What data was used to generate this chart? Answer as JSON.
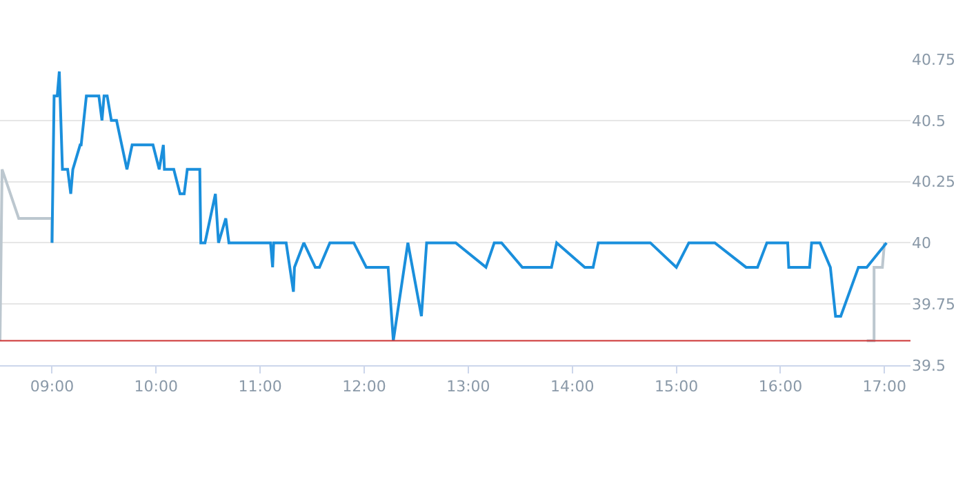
{
  "chart_data": {
    "type": "line",
    "xlim": [
      8.5,
      17.25
    ],
    "xticks": [
      {
        "value": 9,
        "label": "09:00"
      },
      {
        "value": 10,
        "label": "10:00"
      },
      {
        "value": 11,
        "label": "11:00"
      },
      {
        "value": 12,
        "label": "12:00"
      },
      {
        "value": 13,
        "label": "13:00"
      },
      {
        "value": 14,
        "label": "14:00"
      },
      {
        "value": 15,
        "label": "15:00"
      },
      {
        "value": 16,
        "label": "16:00"
      },
      {
        "value": 17,
        "label": "17:00"
      }
    ],
    "ylim": [
      39.5,
      40.75
    ],
    "yticks": [
      39.5,
      39.75,
      40,
      40.25,
      40.5,
      40.75
    ],
    "grid": "y",
    "marker": "none",
    "line_style": "solid",
    "ref_lines": [
      {
        "axis": "y",
        "value": 39.6,
        "label": null,
        "color": "#cc3333"
      }
    ],
    "series": [
      {
        "color": "#bcc7cf",
        "x": [
          8.5,
          8.52,
          8.68,
          9.0,
          9.0
        ],
        "values": [
          39.6,
          40.3,
          40.1,
          40.1,
          40.0
        ]
      },
      {
        "color": "#bcc7cf",
        "x": [
          16.83,
          16.9,
          16.9,
          16.98,
          17.0
        ],
        "values": [
          39.6,
          39.6,
          39.9,
          39.9,
          40.0
        ]
      },
      {
        "color": "#1a8fdc",
        "x": [
          9.0,
          9.02,
          9.05,
          9.07,
          9.1,
          9.15,
          9.18,
          9.2,
          9.27,
          9.28,
          9.33,
          9.45,
          9.48,
          9.5,
          9.53,
          9.57,
          9.62,
          9.67,
          9.72,
          9.77,
          9.97,
          10.03,
          10.07,
          10.08,
          10.17,
          10.23,
          10.27,
          10.3,
          10.42,
          10.43,
          10.47,
          10.57,
          10.6,
          10.67,
          10.7,
          11.1,
          11.12,
          11.13,
          11.25,
          11.32,
          11.33,
          11.42,
          11.53,
          11.57,
          11.67,
          11.9,
          12.02,
          12.23,
          12.28,
          12.42,
          12.55,
          12.6,
          12.88,
          13.17,
          13.25,
          13.32,
          13.52,
          13.8,
          13.85,
          14.12,
          14.2,
          14.25,
          14.75,
          15.0,
          15.12,
          15.37,
          15.67,
          15.78,
          15.87,
          16.07,
          16.08,
          16.28,
          16.3,
          16.38,
          16.48,
          16.53,
          16.58,
          16.75,
          16.83,
          17.02
        ],
        "values": [
          40.0,
          40.6,
          40.6,
          40.7,
          40.3,
          40.3,
          40.2,
          40.3,
          40.4,
          40.4,
          40.6,
          40.6,
          40.5,
          40.6,
          40.6,
          40.5,
          40.5,
          40.4,
          40.3,
          40.4,
          40.4,
          40.3,
          40.4,
          40.3,
          40.3,
          40.2,
          40.2,
          40.3,
          40.3,
          40.0,
          40.0,
          40.2,
          40.0,
          40.1,
          40.0,
          40.0,
          39.9,
          40.0,
          40.0,
          39.8,
          39.9,
          40.0,
          39.9,
          39.9,
          40.0,
          40.0,
          39.9,
          39.9,
          39.6,
          40.0,
          39.7,
          40.0,
          40.0,
          39.9,
          40.0,
          40.0,
          39.9,
          39.9,
          40.0,
          39.9,
          39.9,
          40.0,
          40.0,
          39.9,
          40.0,
          40.0,
          39.9,
          39.9,
          40.0,
          40.0,
          39.9,
          39.9,
          40.0,
          40.0,
          39.9,
          39.7,
          39.7,
          39.9,
          39.9,
          40.0
        ]
      }
    ]
  }
}
